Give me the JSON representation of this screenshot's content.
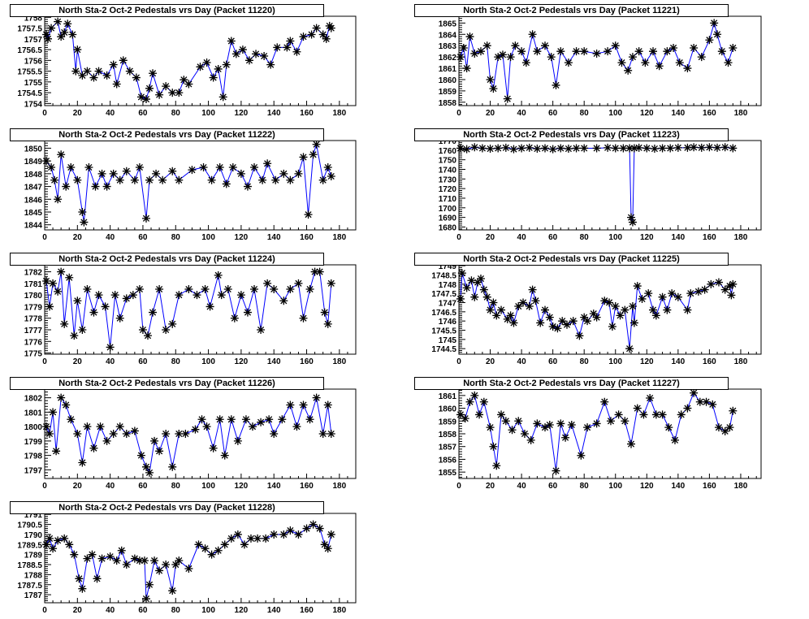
{
  "chart_data": [
    {
      "type": "line",
      "title": "North Sta-2 Oct-2 Pedestals vrs Day (Packet 11220)",
      "xlabel": "",
      "ylabel": "",
      "xlim": [
        0,
        190
      ],
      "ylim": [
        1753.9,
        1758.05
      ],
      "xticks": [
        0,
        20,
        40,
        60,
        80,
        100,
        120,
        140,
        160,
        180
      ],
      "yticks": [
        1754,
        1754.5,
        1755,
        1755.5,
        1756,
        1756.5,
        1757,
        1757.5,
        1758
      ],
      "marker": "star",
      "line_color": "#0000ff",
      "x": [
        1,
        2,
        4,
        8,
        10,
        12,
        14,
        17,
        19,
        20,
        23,
        26,
        30,
        33,
        38,
        42,
        44,
        48,
        52,
        56,
        59,
        62,
        64,
        66,
        70,
        74,
        78,
        82,
        85,
        88,
        95,
        99,
        103,
        106,
        109,
        111,
        114,
        117,
        121,
        125,
        129,
        134,
        138,
        142,
        148,
        150,
        154,
        158,
        163,
        166,
        170,
        172,
        174,
        175
      ],
      "y": [
        1757.2,
        1757,
        1757.5,
        1757.8,
        1757.1,
        1757.3,
        1757.7,
        1757.2,
        1755.5,
        1756.5,
        1755.3,
        1755.5,
        1755.2,
        1755.5,
        1755.3,
        1755.8,
        1754.9,
        1756,
        1755.5,
        1755.2,
        1754.3,
        1754.2,
        1754.7,
        1755.4,
        1754.4,
        1754.8,
        1754.5,
        1754.5,
        1755.1,
        1754.9,
        1755.7,
        1755.9,
        1755.2,
        1755.6,
        1754.3,
        1755.8,
        1756.9,
        1756.3,
        1756.5,
        1756,
        1756.3,
        1756.2,
        1755.8,
        1756.6,
        1756.6,
        1756.9,
        1756.4,
        1757.1,
        1757.2,
        1757.5,
        1757.2,
        1757,
        1757.6,
        1757.5
      ]
    },
    {
      "type": "line",
      "title": "North Sta-2 Oct-2 Pedestals vrs Day (Packet 11221)",
      "xlabel": "",
      "ylabel": "",
      "xlim": [
        0,
        193
      ],
      "ylim": [
        1857.7,
        1865.6
      ],
      "xticks": [
        0,
        20,
        40,
        60,
        80,
        100,
        120,
        140,
        160,
        180
      ],
      "yticks": [
        1858,
        1859,
        1860,
        1861,
        1862,
        1863,
        1864,
        1865
      ],
      "marker": "star",
      "line_color": "#0000ff",
      "x": [
        1,
        3,
        5,
        7,
        10,
        14,
        18,
        20,
        22,
        25,
        28,
        31,
        33,
        36,
        40,
        43,
        47,
        50,
        55,
        59,
        62,
        65,
        70,
        75,
        80,
        88,
        95,
        100,
        104,
        108,
        111,
        115,
        119,
        124,
        128,
        133,
        137,
        141,
        146,
        150,
        155,
        160,
        163,
        165,
        168,
        172,
        175
      ],
      "y": [
        1862,
        1862.8,
        1861,
        1863.8,
        1862.3,
        1862.5,
        1863,
        1860,
        1859.2,
        1862,
        1862.2,
        1858.3,
        1862,
        1863,
        1862.5,
        1861.5,
        1864,
        1862.5,
        1863,
        1862,
        1859.5,
        1862.5,
        1861.5,
        1862.5,
        1862.5,
        1862.3,
        1862.5,
        1863,
        1861.5,
        1860.8,
        1862,
        1862.5,
        1861.5,
        1862.5,
        1861.2,
        1862.5,
        1862.8,
        1861.5,
        1861,
        1862.8,
        1862,
        1863.5,
        1865,
        1864,
        1862.5,
        1861.5,
        1862.8
      ]
    },
    {
      "type": "line",
      "title": "North Sta-2 Oct-2 Pedestals vrs Day (Packet 11222)",
      "xlabel": "",
      "ylabel": "",
      "xlim": [
        0,
        190
      ],
      "ylim": [
        1843.6,
        1850.6
      ],
      "xticks": [
        0,
        20,
        40,
        60,
        80,
        100,
        120,
        140,
        160,
        180
      ],
      "yticks": [
        1844,
        1845,
        1846,
        1847,
        1848,
        1849,
        1850
      ],
      "marker": "star",
      "line_color": "#0000ff",
      "x": [
        1,
        4,
        6,
        8,
        10,
        13,
        16,
        20,
        23,
        24,
        27,
        31,
        35,
        38,
        42,
        46,
        50,
        55,
        58,
        62,
        64,
        68,
        72,
        78,
        82,
        90,
        97,
        102,
        107,
        111,
        115,
        120,
        124,
        128,
        133,
        136,
        141,
        146,
        150,
        155,
        158,
        161,
        164,
        166,
        170,
        173,
        175
      ],
      "y": [
        1849,
        1848.5,
        1847.5,
        1846,
        1849.5,
        1847,
        1848.5,
        1847.5,
        1845,
        1844.2,
        1848.5,
        1847,
        1848,
        1847,
        1848,
        1847.5,
        1848.2,
        1847.5,
        1848.5,
        1844.5,
        1847.5,
        1848,
        1847.5,
        1848.2,
        1847.5,
        1848.3,
        1848.5,
        1847.5,
        1848.5,
        1847.2,
        1848.5,
        1848,
        1847,
        1848.5,
        1847.5,
        1848.8,
        1847.5,
        1848,
        1847.5,
        1848,
        1849.3,
        1844.8,
        1849.5,
        1850.3,
        1847.5,
        1848.5,
        1847.8
      ]
    },
    {
      "type": "line",
      "title": "North Sta-2 Oct-2 Pedestals vrs Day (Packet 11223)",
      "xlabel": "",
      "ylabel": "",
      "xlim": [
        0,
        193
      ],
      "ylim": [
        1677,
        1770
      ],
      "xticks": [
        0,
        20,
        40,
        60,
        80,
        100,
        120,
        140,
        160,
        180
      ],
      "yticks": [
        1680,
        1690,
        1700,
        1710,
        1720,
        1730,
        1740,
        1750,
        1760,
        1770
      ],
      "marker": "star",
      "line_color": "#0000ff",
      "x": [
        1,
        5,
        10,
        15,
        20,
        25,
        30,
        35,
        40,
        45,
        50,
        55,
        60,
        65,
        70,
        75,
        80,
        88,
        95,
        100,
        105,
        109,
        110,
        111,
        112,
        115,
        120,
        125,
        130,
        135,
        140,
        146,
        150,
        155,
        160,
        165,
        170,
        175
      ],
      "y": [
        1762,
        1761,
        1763,
        1762,
        1761.5,
        1762,
        1762.5,
        1761,
        1762,
        1762.5,
        1761.5,
        1762,
        1761,
        1762,
        1761.5,
        1762,
        1762,
        1762,
        1762.5,
        1762,
        1762,
        1762,
        1690,
        1685,
        1762,
        1762.5,
        1762,
        1761.5,
        1762,
        1762,
        1762.5,
        1762.5,
        1763,
        1762.5,
        1763,
        1762.5,
        1763,
        1762
      ]
    },
    {
      "type": "line",
      "title": "North Sta-2 Oct-2 Pedestals vrs Day (Packet 11224)",
      "xlabel": "",
      "ylabel": "",
      "xlim": [
        0,
        190
      ],
      "ylim": [
        1774.9,
        1782.6
      ],
      "xticks": [
        0,
        20,
        40,
        60,
        80,
        100,
        120,
        140,
        160,
        180
      ],
      "yticks": [
        1775,
        1776,
        1777,
        1778,
        1779,
        1780,
        1781,
        1782
      ],
      "marker": "star",
      "line_color": "#0000ff",
      "x": [
        1,
        3,
        5,
        8,
        10,
        12,
        15,
        18,
        20,
        23,
        26,
        30,
        33,
        37,
        40,
        43,
        46,
        50,
        54,
        58,
        60,
        63,
        66,
        70,
        74,
        78,
        82,
        88,
        93,
        98,
        101,
        106,
        108,
        112,
        116,
        120,
        124,
        128,
        132,
        136,
        140,
        146,
        150,
        155,
        158,
        162,
        165,
        168,
        171,
        173,
        175
      ],
      "y": [
        1781.2,
        1779,
        1781,
        1780.3,
        1782,
        1777.5,
        1781.5,
        1776.5,
        1779.5,
        1777,
        1780.5,
        1778.5,
        1780,
        1779,
        1775.5,
        1780,
        1778,
        1779.7,
        1780,
        1780.5,
        1777,
        1776.5,
        1778.5,
        1780.5,
        1777,
        1777.5,
        1780,
        1780.5,
        1780,
        1780.5,
        1779,
        1781.7,
        1780,
        1780.5,
        1778,
        1780,
        1778.5,
        1780.5,
        1777,
        1781,
        1780.5,
        1779.5,
        1780.5,
        1781,
        1778,
        1780.5,
        1782,
        1782,
        1778.5,
        1777.5,
        1781
      ]
    },
    {
      "type": "line",
      "title": "North Sta-2 Oct-2 Pedestals vrs Day (Packet 11225)",
      "xlabel": "",
      "ylabel": "",
      "xlim": [
        0,
        193
      ],
      "ylim": [
        1744.2,
        1749.05
      ],
      "xticks": [
        0,
        20,
        40,
        60,
        80,
        100,
        120,
        140,
        160,
        180
      ],
      "yticks": [
        1744.5,
        1745,
        1745.5,
        1746,
        1746.5,
        1747,
        1747.5,
        1748,
        1748.5,
        1749
      ],
      "marker": "star",
      "line_color": "#0000ff",
      "x": [
        1,
        2,
        5,
        8,
        10,
        12,
        14,
        16,
        18,
        20,
        22,
        24,
        27,
        31,
        33,
        35,
        38,
        41,
        45,
        47,
        49,
        52,
        55,
        58,
        60,
        63,
        66,
        69,
        73,
        77,
        80,
        82,
        86,
        88,
        93,
        96,
        98,
        100,
        103,
        106,
        109,
        111,
        112,
        114,
        117,
        121,
        124,
        126,
        130,
        133,
        136,
        140,
        146,
        148,
        153,
        157,
        161,
        166,
        170,
        173,
        174,
        175
      ],
      "y": [
        1747.2,
        1748.6,
        1747.8,
        1748.2,
        1747.3,
        1748.1,
        1748.3,
        1747.7,
        1747.3,
        1746.6,
        1747,
        1746.3,
        1746.6,
        1746.1,
        1746.3,
        1745.9,
        1746.8,
        1747,
        1746.8,
        1747.7,
        1747.1,
        1745.9,
        1746.6,
        1746.2,
        1745.7,
        1745.6,
        1746,
        1745.8,
        1746,
        1745.2,
        1746.2,
        1746,
        1746.4,
        1746.2,
        1747.1,
        1747,
        1745.7,
        1746.8,
        1746.3,
        1746.6,
        1744.5,
        1746.8,
        1745.9,
        1747.9,
        1747.2,
        1747.5,
        1746.6,
        1746.3,
        1747.3,
        1746.6,
        1747.5,
        1747.3,
        1746.6,
        1747.5,
        1747.6,
        1747.7,
        1748,
        1748.1,
        1747.7,
        1747.9,
        1747.4,
        1748
      ]
    },
    {
      "type": "line",
      "title": "North Sta-2 Oct-2 Pedestals vrs Day (Packet 11226)",
      "xlabel": "",
      "ylabel": "",
      "xlim": [
        0,
        190
      ],
      "ylim": [
        1796.4,
        1802.6
      ],
      "xticks": [
        0,
        20,
        40,
        60,
        80,
        100,
        120,
        140,
        160,
        180
      ],
      "yticks": [
        1797,
        1798,
        1799,
        1800,
        1801,
        1802
      ],
      "marker": "star",
      "line_color": "#0000ff",
      "x": [
        1,
        3,
        5,
        7,
        10,
        13,
        16,
        20,
        23,
        26,
        30,
        34,
        38,
        42,
        46,
        50,
        55,
        59,
        62,
        64,
        67,
        70,
        74,
        78,
        82,
        86,
        92,
        96,
        99,
        103,
        107,
        110,
        114,
        118,
        123,
        127,
        132,
        137,
        140,
        145,
        150,
        154,
        158,
        162,
        166,
        170,
        173,
        175
      ],
      "y": [
        1800,
        1799.5,
        1801,
        1798.3,
        1802,
        1801.5,
        1800.5,
        1799.5,
        1797.5,
        1800,
        1798.5,
        1800,
        1799,
        1799.5,
        1800,
        1799.5,
        1799.7,
        1798,
        1797.2,
        1796.8,
        1799,
        1798.3,
        1799.5,
        1797.2,
        1799.5,
        1799.5,
        1799.8,
        1800.5,
        1800,
        1798.5,
        1800.5,
        1798,
        1800.5,
        1799,
        1800.5,
        1800,
        1800.3,
        1800.5,
        1799.5,
        1800.5,
        1801.5,
        1800,
        1801.5,
        1800.5,
        1802,
        1799.5,
        1801.5,
        1799.5
      ]
    },
    {
      "type": "line",
      "title": "North Sta-2 Oct-2 Pedestals vrs Day (Packet 11227)",
      "xlabel": "",
      "ylabel": "",
      "xlim": [
        0,
        193
      ],
      "ylim": [
        1854.5,
        1861.5
      ],
      "xticks": [
        0,
        20,
        40,
        60,
        80,
        100,
        120,
        140,
        160,
        180
      ],
      "yticks": [
        1855,
        1856,
        1857,
        1858,
        1859,
        1860,
        1861
      ],
      "marker": "star",
      "line_color": "#0000ff",
      "x": [
        1,
        4,
        7,
        10,
        13,
        16,
        20,
        22,
        24,
        27,
        30,
        34,
        38,
        42,
        46,
        50,
        55,
        58,
        62,
        65,
        68,
        72,
        78,
        82,
        88,
        93,
        97,
        102,
        106,
        110,
        114,
        118,
        122,
        126,
        130,
        134,
        138,
        142,
        146,
        150,
        154,
        158,
        162,
        166,
        170,
        173,
        175
      ],
      "y": [
        1859.5,
        1859.2,
        1860.5,
        1861,
        1859.5,
        1860.5,
        1858.5,
        1857,
        1855.5,
        1859.5,
        1859,
        1858.3,
        1859,
        1858,
        1857.5,
        1858.8,
        1858.5,
        1858.7,
        1855.1,
        1858.8,
        1857.7,
        1858.7,
        1856.3,
        1858.5,
        1858.8,
        1860.5,
        1859,
        1859.5,
        1859,
        1857.2,
        1860,
        1859.5,
        1860.8,
        1859.5,
        1859.5,
        1858.5,
        1857.5,
        1859.5,
        1860,
        1861.2,
        1860.5,
        1860.5,
        1860.3,
        1858.5,
        1858.2,
        1858.5,
        1859.8
      ]
    },
    {
      "type": "line",
      "title": "North Sta-2 Oct-2 Pedestals vrs Day (Packet 11228)",
      "xlabel": "",
      "ylabel": "",
      "xlim": [
        0,
        190
      ],
      "ylim": [
        1786.6,
        1791.05
      ],
      "xticks": [
        0,
        20,
        40,
        60,
        80,
        100,
        120,
        140,
        160,
        180
      ],
      "yticks": [
        1787,
        1787.5,
        1788,
        1788.5,
        1789,
        1789.5,
        1790,
        1790.5,
        1791
      ],
      "marker": "star",
      "line_color": "#0000ff",
      "x": [
        1,
        3,
        5,
        8,
        12,
        15,
        18,
        21,
        23,
        26,
        29,
        32,
        35,
        40,
        44,
        47,
        50,
        55,
        58,
        61,
        62,
        64,
        67,
        70,
        74,
        78,
        80,
        82,
        88,
        94,
        98,
        102,
        106,
        110,
        114,
        118,
        122,
        126,
        130,
        135,
        140,
        146,
        150,
        155,
        160,
        164,
        168,
        171,
        173,
        175
      ],
      "y": [
        1789.5,
        1789.8,
        1789.3,
        1789.7,
        1789.8,
        1789.5,
        1789,
        1787.8,
        1787.3,
        1788.8,
        1789,
        1787.8,
        1788.8,
        1788.9,
        1788.7,
        1789.2,
        1788.5,
        1788.8,
        1788.7,
        1788.7,
        1786.8,
        1787.5,
        1788.7,
        1788.2,
        1788.5,
        1787.2,
        1788.5,
        1788.7,
        1788.3,
        1789.5,
        1789.3,
        1789,
        1789.2,
        1789.5,
        1789.8,
        1790,
        1789.5,
        1789.8,
        1789.8,
        1789.8,
        1790,
        1790,
        1790.2,
        1790,
        1790.3,
        1790.5,
        1790.3,
        1789.5,
        1789.3,
        1790
      ]
    }
  ]
}
